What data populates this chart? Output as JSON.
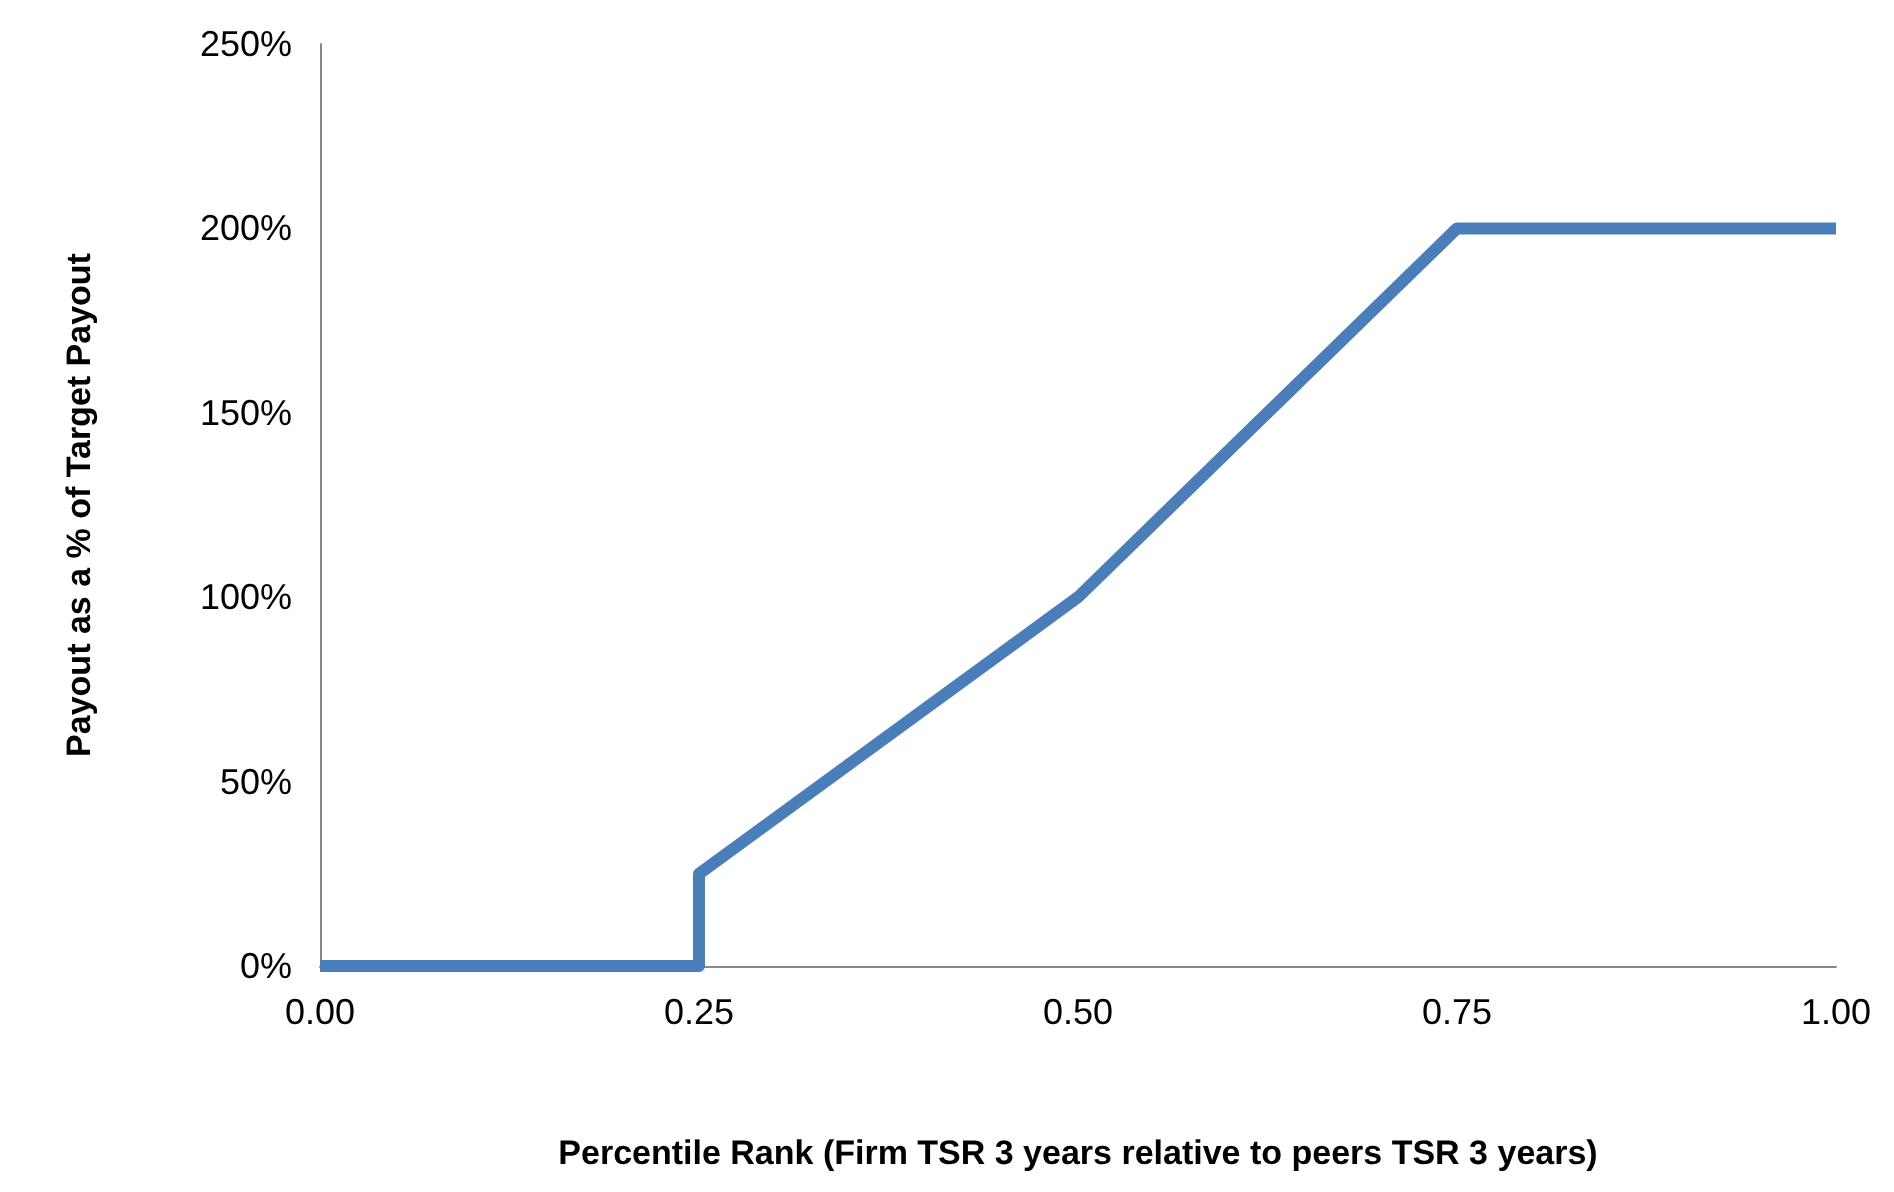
{
  "chart_data": {
    "type": "line",
    "xlabel": "Percentile Rank (Firm TSR 3 years relative to peers TSR 3 years)",
    "ylabel": "Payout as a % of Target Payout",
    "series": [
      {
        "color": "#4a7ebb",
        "x": [
          0,
          0.25,
          0.25,
          0.5,
          0.75,
          1
        ],
        "values": [
          0,
          0,
          25,
          100,
          200,
          200
        ]
      }
    ],
    "xlim": [
      0,
      1
    ],
    "xticks": [
      {
        "value": 0,
        "label": "0.00"
      },
      {
        "value": 0.25,
        "label": "0.25"
      },
      {
        "value": 0.5,
        "label": "0.50"
      },
      {
        "value": 0.75,
        "label": "0.75"
      },
      {
        "value": 1,
        "label": "1.00"
      }
    ],
    "ylim": [
      0,
      250
    ],
    "yticks": [
      {
        "value": 0,
        "label": "0%"
      },
      {
        "value": 50,
        "label": "50%"
      },
      {
        "value": 100,
        "label": "100%"
      },
      {
        "value": 150,
        "label": "150%"
      },
      {
        "value": 200,
        "label": "200%"
      },
      {
        "value": 250,
        "label": "250%"
      }
    ],
    "marker": "none",
    "line_style": "solid"
  }
}
